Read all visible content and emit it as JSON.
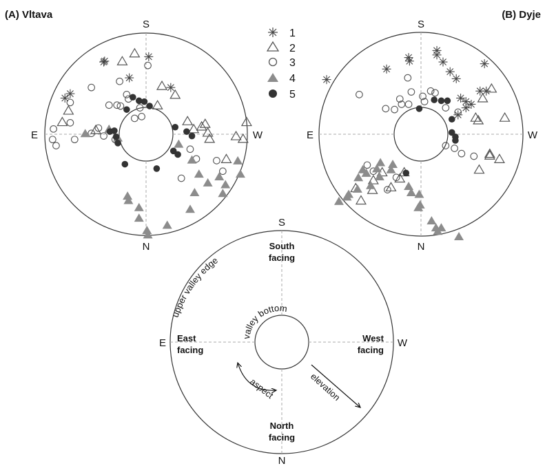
{
  "panels": {
    "a": {
      "label": "(A) Vltava",
      "s": "S",
      "n": "N",
      "e": "E",
      "w": "W"
    },
    "b": {
      "label": "(B) Dyje",
      "s": "S",
      "n": "N",
      "e": "E",
      "w": "W"
    }
  },
  "legend": [
    "1",
    "2",
    "3",
    "4",
    "5"
  ],
  "guide": {
    "s": "S",
    "n": "N",
    "e": "E",
    "w": "W",
    "south_facing": [
      "South",
      "facing"
    ],
    "north_facing": [
      "North",
      "facing"
    ],
    "east_facing": [
      "East",
      "facing"
    ],
    "west_facing": [
      "West",
      "facing"
    ],
    "upper_valley_edge": "upper valley edge",
    "valley_bottom": "valley bottom",
    "aspect": "aspect",
    "elevation": "elevation"
  },
  "colors": {
    "filled_triangle": "#8c8c8c",
    "filled_circle": "#333333",
    "outline": "#555555"
  },
  "chart_data": [
    {
      "type": "scatter",
      "title": "(A) Vltava",
      "polar_axes": {
        "top": "S",
        "bottom": "N",
        "left": "E",
        "right": "W"
      },
      "series": [
        {
          "name": "1",
          "marker": "asterisk",
          "points": [
            [
              -0.47,
              0.83
            ],
            [
              -0.48,
              0.82
            ],
            [
              -0.86,
              0.46
            ],
            [
              -0.92,
              0.41
            ],
            [
              0.03,
              0.88
            ],
            [
              -0.19,
              0.64
            ],
            [
              0.28,
              0.53
            ]
          ]
        },
        {
          "name": "2",
          "marker": "open-triangle",
          "points": [
            [
              -0.27,
              0.83
            ],
            [
              -0.13,
              0.92
            ],
            [
              -0.95,
              0.14
            ],
            [
              -0.88,
              0.27
            ],
            [
              -0.57,
              0.05
            ],
            [
              0.13,
              0.33
            ],
            [
              0.18,
              0.55
            ],
            [
              0.33,
              0.45
            ],
            [
              0.47,
              0.15
            ],
            [
              0.54,
              0.06
            ],
            [
              0.67,
              0.12
            ],
            [
              0.63,
              0.09
            ],
            [
              0.72,
              -0.05
            ],
            [
              1.1,
              -0.05
            ],
            [
              1.02,
              -0.02
            ],
            [
              1.14,
              0.14
            ],
            [
              0.91,
              -0.28
            ],
            [
              0.7,
              0.02
            ]
          ]
        },
        {
          "name": "3",
          "marker": "open-circle",
          "points": [
            [
              -0.86,
              0.36
            ],
            [
              -0.62,
              0.53
            ],
            [
              -0.3,
              0.6
            ],
            [
              -0.2,
              0.4
            ],
            [
              -0.29,
              0.32
            ],
            [
              -0.13,
              0.18
            ],
            [
              -0.05,
              0.2
            ],
            [
              -0.07,
              0.3
            ],
            [
              -0.22,
              0.45
            ],
            [
              -0.33,
              0.33
            ],
            [
              -0.42,
              0.33
            ],
            [
              -0.86,
              0.13
            ],
            [
              -1.05,
              0.06
            ],
            [
              -1.02,
              -0.13
            ],
            [
              -1.06,
              -0.06
            ],
            [
              -0.81,
              -0.06
            ],
            [
              -0.62,
              0.01
            ],
            [
              -0.54,
              0.07
            ],
            [
              -0.48,
              -0.02
            ],
            [
              -0.35,
              -0.06
            ],
            [
              0.5,
              -0.17
            ],
            [
              0.57,
              -0.28
            ],
            [
              0.8,
              -0.3
            ],
            [
              0.87,
              -0.42
            ],
            [
              0.4,
              -0.5
            ],
            [
              0.02,
              0.78
            ]
          ]
        },
        {
          "name": "4",
          "marker": "filled-triangle",
          "points": [
            [
              -0.69,
              0.01
            ],
            [
              -0.42,
              0.06
            ],
            [
              -0.32,
              -0.04
            ],
            [
              0.37,
              -0.11
            ],
            [
              0.52,
              -0.29
            ],
            [
              0.6,
              -0.45
            ],
            [
              0.7,
              -0.55
            ],
            [
              0.83,
              -0.48
            ],
            [
              0.87,
              -0.67
            ],
            [
              1.04,
              -0.3
            ],
            [
              1.07,
              -0.45
            ],
            [
              0.9,
              -0.57
            ],
            [
              -0.21,
              -0.7
            ],
            [
              -0.2,
              -0.75
            ],
            [
              -0.08,
              -0.95
            ],
            [
              0.01,
              -1.09
            ],
            [
              0.24,
              -1.03
            ],
            [
              0.02,
              -1.14
            ],
            [
              0.5,
              -0.85
            ],
            [
              0.55,
              -0.66
            ],
            [
              -0.08,
              -0.83
            ]
          ]
        },
        {
          "name": "5",
          "marker": "filled-circle",
          "points": [
            [
              -0.02,
              0.37
            ],
            [
              -0.15,
              0.42
            ],
            [
              -0.08,
              0.38
            ],
            [
              -0.22,
              0.28
            ],
            [
              -0.41,
              0.03
            ],
            [
              -0.36,
              0.04
            ],
            [
              -0.34,
              -0.03
            ],
            [
              -0.32,
              -0.1
            ],
            [
              0.04,
              0.32
            ],
            [
              0.33,
              0.08
            ],
            [
              0.31,
              -0.19
            ],
            [
              0.36,
              -0.23
            ],
            [
              0.46,
              0.03
            ],
            [
              0.52,
              -0.02
            ],
            [
              -0.24,
              -0.34
            ],
            [
              0.12,
              -0.39
            ]
          ]
        }
      ]
    },
    {
      "type": "scatter",
      "title": "(B) Dyje",
      "polar_axes": {
        "top": "S",
        "bottom": "N",
        "left": "E",
        "right": "W"
      },
      "series": [
        {
          "name": "1",
          "marker": "asterisk",
          "points": [
            [
              -1.07,
              0.62
            ],
            [
              -0.39,
              0.74
            ],
            [
              -0.14,
              0.87
            ],
            [
              -0.13,
              0.83
            ],
            [
              0.18,
              0.9
            ],
            [
              0.25,
              0.82
            ],
            [
              0.18,
              0.95
            ],
            [
              0.4,
              0.63
            ],
            [
              0.45,
              0.41
            ],
            [
              0.67,
              0.49
            ],
            [
              0.74,
              0.49
            ],
            [
              0.57,
              0.34
            ],
            [
              0.51,
              0.37
            ],
            [
              0.33,
              0.71
            ],
            [
              0.51,
              0.3
            ],
            [
              0.42,
              0.22
            ],
            [
              0.72,
              0.8
            ]
          ]
        },
        {
          "name": "2",
          "marker": "open-triangle",
          "points": [
            [
              0.8,
              0.52
            ],
            [
              0.7,
              0.41
            ],
            [
              0.62,
              0.19
            ],
            [
              0.65,
              0.16
            ],
            [
              0.78,
              -0.22
            ],
            [
              0.89,
              -0.28
            ],
            [
              0.66,
              -0.4
            ],
            [
              0.78,
              -0.24
            ],
            [
              0.95,
              0.19
            ],
            [
              -0.55,
              -0.63
            ],
            [
              -0.54,
              -0.52
            ],
            [
              -0.44,
              -0.43
            ],
            [
              -0.19,
              -0.43
            ],
            [
              -0.24,
              -0.5
            ],
            [
              -0.34,
              -0.6
            ],
            [
              -0.74,
              -0.61
            ],
            [
              -0.68,
              -0.75
            ]
          ]
        },
        {
          "name": "3",
          "marker": "open-circle",
          "points": [
            [
              -0.7,
              0.45
            ],
            [
              -0.15,
              0.64
            ],
            [
              -0.11,
              0.48
            ],
            [
              -0.24,
              0.4
            ],
            [
              -0.22,
              0.34
            ],
            [
              -0.3,
              0.28
            ],
            [
              -0.4,
              0.29
            ],
            [
              0.04,
              0.37
            ],
            [
              0.02,
              0.43
            ],
            [
              0.11,
              0.49
            ],
            [
              0.16,
              0.47
            ],
            [
              -0.14,
              0.34
            ],
            [
              0.28,
              0.3
            ],
            [
              0.42,
              0.25
            ],
            [
              0.28,
              -0.13
            ],
            [
              0.38,
              -0.16
            ],
            [
              0.46,
              -0.22
            ],
            [
              0.6,
              -0.25
            ],
            [
              -0.61,
              -0.35
            ],
            [
              -0.54,
              -0.42
            ],
            [
              -0.38,
              -0.63
            ],
            [
              -0.28,
              -0.49
            ]
          ]
        },
        {
          "name": "4",
          "marker": "filled-triangle",
          "points": [
            [
              -0.32,
              -0.34
            ],
            [
              -0.34,
              -0.4
            ],
            [
              -0.46,
              -0.32
            ],
            [
              -0.5,
              -0.39
            ],
            [
              -0.66,
              -0.4
            ],
            [
              -0.71,
              -0.49
            ],
            [
              -0.57,
              -0.58
            ],
            [
              -0.72,
              -0.62
            ],
            [
              -0.84,
              -0.71
            ],
            [
              -0.62,
              -0.44
            ],
            [
              -0.82,
              -0.68
            ],
            [
              -0.93,
              -0.76
            ],
            [
              -0.47,
              -0.48
            ],
            [
              -0.14,
              -0.59
            ],
            [
              -0.11,
              -0.66
            ],
            [
              -0.01,
              -0.8
            ],
            [
              0.12,
              -0.98
            ],
            [
              0.19,
              -1.1
            ],
            [
              0.23,
              -1.06
            ],
            [
              0.17,
              -1.06
            ],
            [
              0.43,
              -1.16
            ],
            [
              -0.03,
              -0.83
            ],
            [
              -0.02,
              -0.68
            ]
          ]
        },
        {
          "name": "5",
          "marker": "filled-circle",
          "points": [
            [
              -0.02,
              0.29
            ],
            [
              0.15,
              0.39
            ],
            [
              0.23,
              0.38
            ],
            [
              0.3,
              0.38
            ],
            [
              0.35,
              0.17
            ],
            [
              0.35,
              0.02
            ],
            [
              0.39,
              -0.03
            ],
            [
              0.39,
              -0.07
            ],
            [
              -0.17,
              -0.44
            ]
          ]
        }
      ]
    }
  ]
}
